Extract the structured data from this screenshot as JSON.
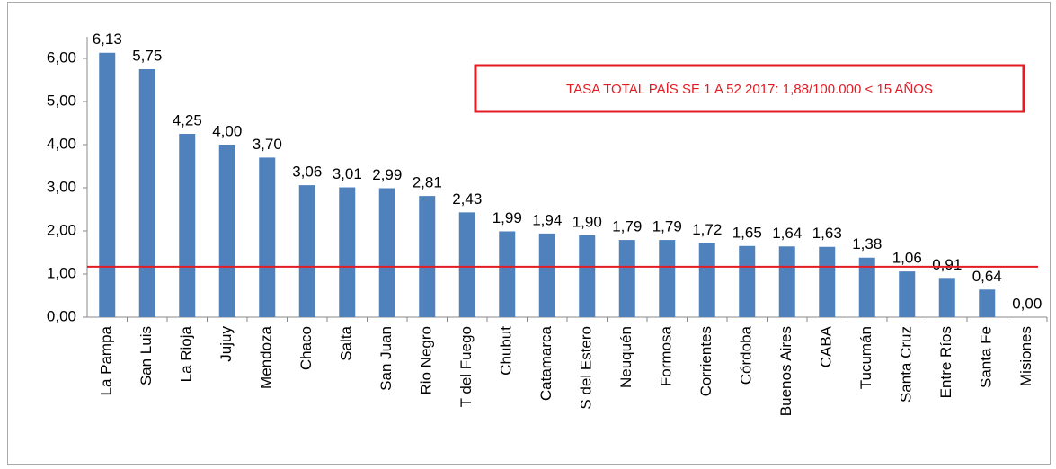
{
  "chart_data": {
    "type": "bar",
    "categories": [
      "La Pampa",
      "San Luis",
      "La Rioja",
      "Jujuy",
      "Mendoza",
      "Chaco",
      "Salta",
      "San Juan",
      "Rio Negro",
      "T del Fuego",
      "Chubut",
      "Catamarca",
      "S del Estero",
      "Neuquén",
      "Formosa",
      "Corrientes",
      "Córdoba",
      "Buenos Aires",
      "CABA",
      "Tucumán",
      "Santa Cruz",
      "Entre Ríos",
      "Santa Fe",
      "Misiones"
    ],
    "values": [
      6.13,
      5.75,
      4.25,
      4.0,
      3.7,
      3.06,
      3.01,
      2.99,
      2.81,
      2.43,
      1.99,
      1.94,
      1.9,
      1.79,
      1.79,
      1.72,
      1.65,
      1.64,
      1.63,
      1.38,
      1.06,
      0.91,
      0.64,
      0.0
    ],
    "value_labels": [
      "6,13",
      "5,75",
      "4,25",
      "4,00",
      "3,70",
      "3,06",
      "3,01",
      "2,99",
      "2,81",
      "2,43",
      "1,99",
      "1,94",
      "1,90",
      "1,79",
      "1,79",
      "1,72",
      "1,65",
      "1,64",
      "1,63",
      "1,38",
      "1,06",
      "0,91",
      "0,64",
      "0,00"
    ],
    "color": "#4f81bd",
    "ylim": [
      0,
      6.5
    ],
    "yticks": [
      {
        "value": 0,
        "label": "0,00"
      },
      {
        "value": 1,
        "label": "1,00"
      },
      {
        "value": 2,
        "label": "2,00"
      },
      {
        "value": 3,
        "label": "3,00"
      },
      {
        "value": 4,
        "label": "4,00"
      },
      {
        "value": 5,
        "label": "5,00"
      },
      {
        "value": 6,
        "label": "6,00"
      }
    ],
    "reference_line": {
      "value": 1.17,
      "color": "#e31b23"
    },
    "annotation": "TASA TOTAL PAÍS  SE 1 A 52 2017: 1,88/100.000 < 15 AÑOS",
    "grid": false
  }
}
